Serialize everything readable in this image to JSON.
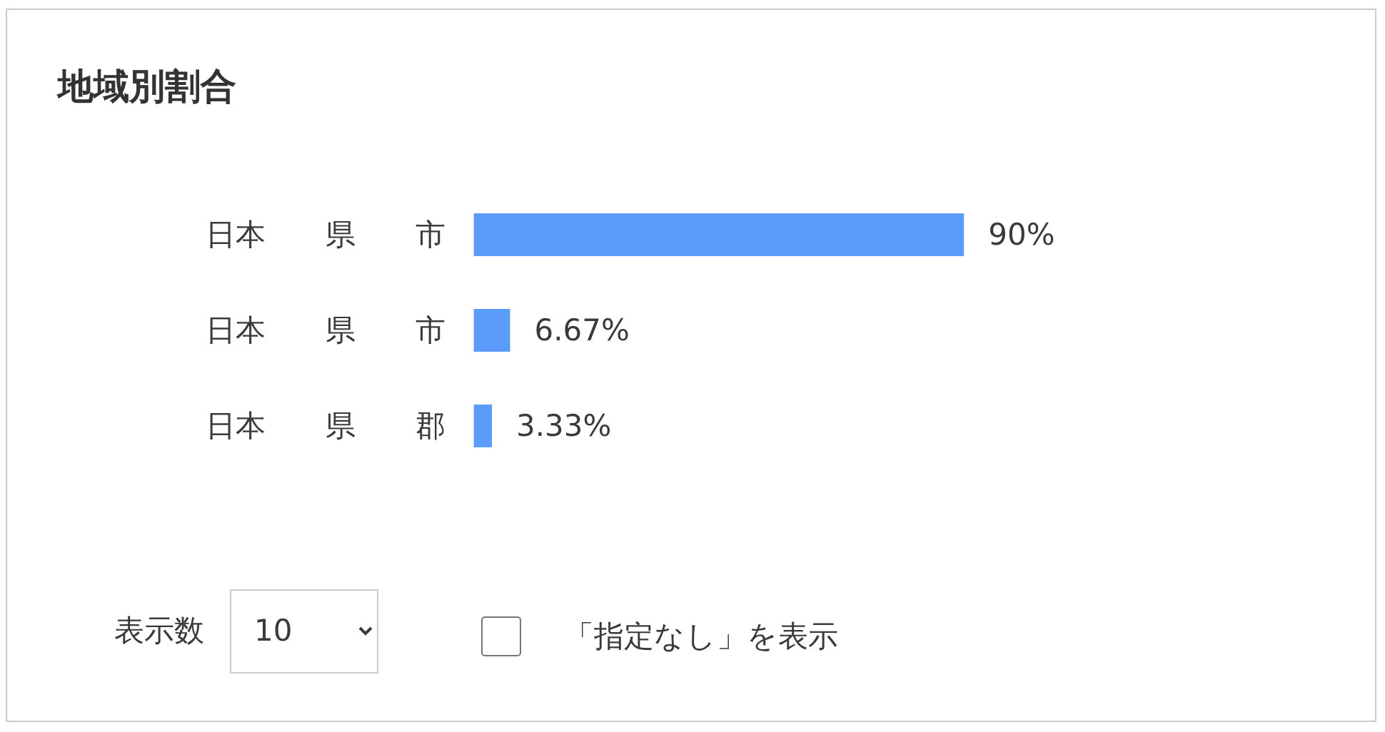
{
  "chart_data": {
    "type": "bar",
    "orientation": "horizontal",
    "title": "地域別割合",
    "categories": [
      "日本　　県　　市",
      "日本　　県　　市",
      "日本　　県　　郡"
    ],
    "values": [
      90,
      6.67,
      3.33
    ],
    "color": "#5b9cfa",
    "value_labels": [
      "90%",
      "6.67%",
      "3.33%"
    ],
    "annotations": [
      "表示数",
      "10",
      "「指定なし」を表示"
    ]
  }
}
